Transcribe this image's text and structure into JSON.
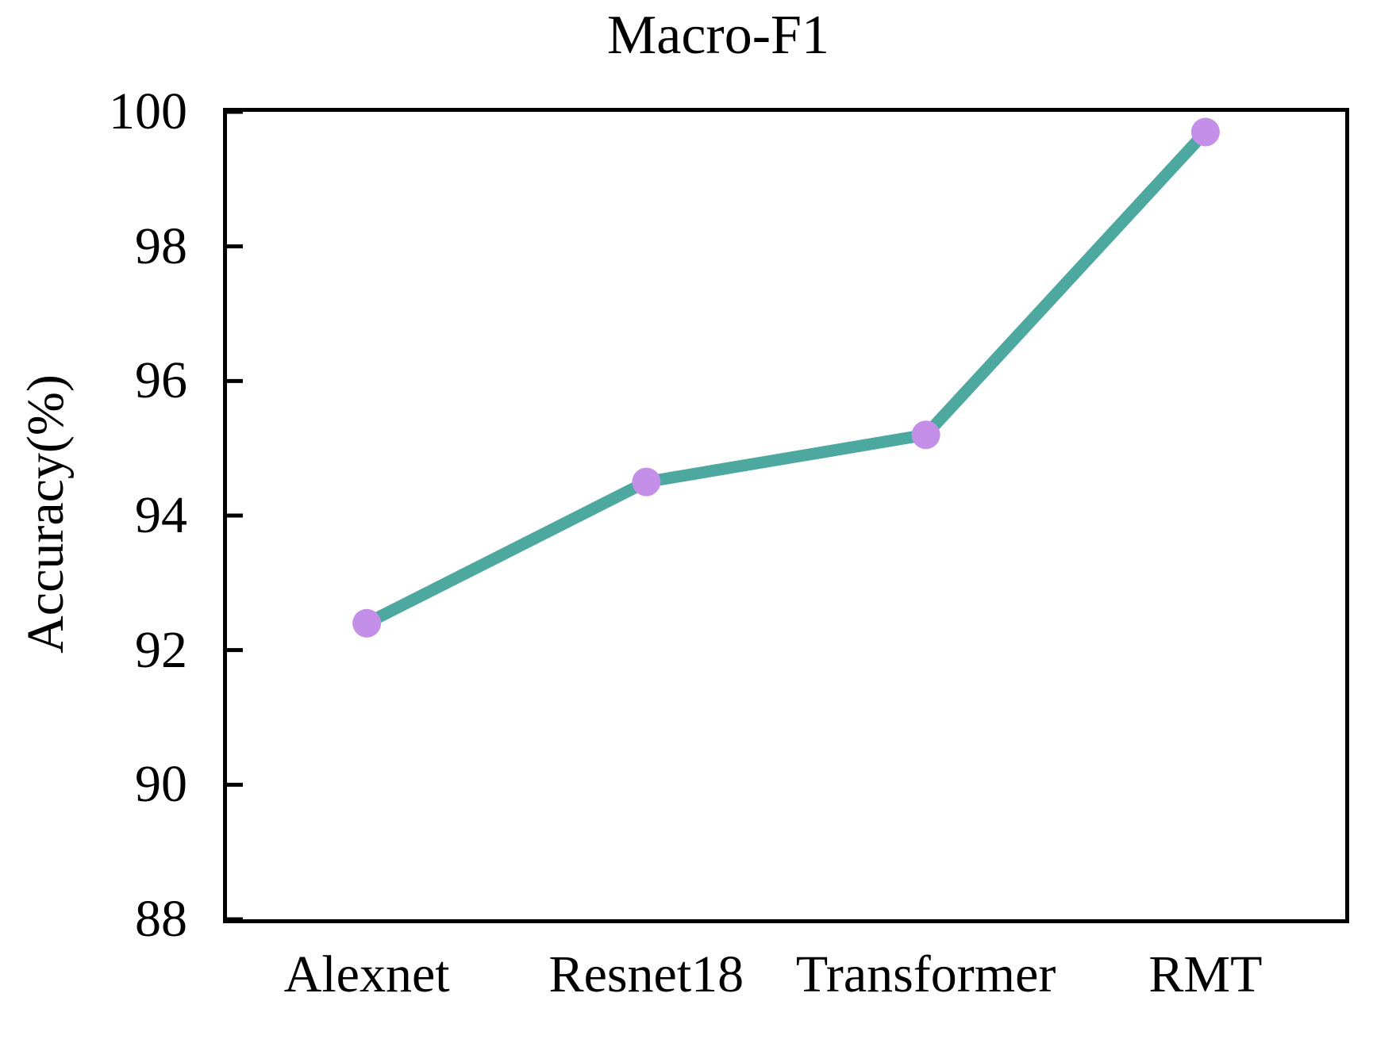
{
  "chart_data": {
    "type": "line",
    "title": "Macro-F1",
    "xlabel": "",
    "ylabel": "Accuracy(%)",
    "categories": [
      "Alexnet",
      "Resnet18",
      "Transformer",
      "RMT"
    ],
    "series": [
      {
        "name": "Macro-F1",
        "values": [
          92.4,
          94.5,
          95.2,
          99.7
        ]
      }
    ],
    "ylim": [
      88,
      100
    ],
    "yticks": [
      88,
      90,
      92,
      94,
      96,
      98,
      100
    ],
    "grid": false,
    "legend": "none",
    "tick_style": "inward-left-only",
    "colors": {
      "line": "#4da8a0",
      "marker": "#c48fe9",
      "axis": "#000000",
      "text": "#000000",
      "background": "#ffffff"
    },
    "line_width": 15,
    "marker_radius": 18,
    "tick_length": 20,
    "tick_width": 5
  }
}
